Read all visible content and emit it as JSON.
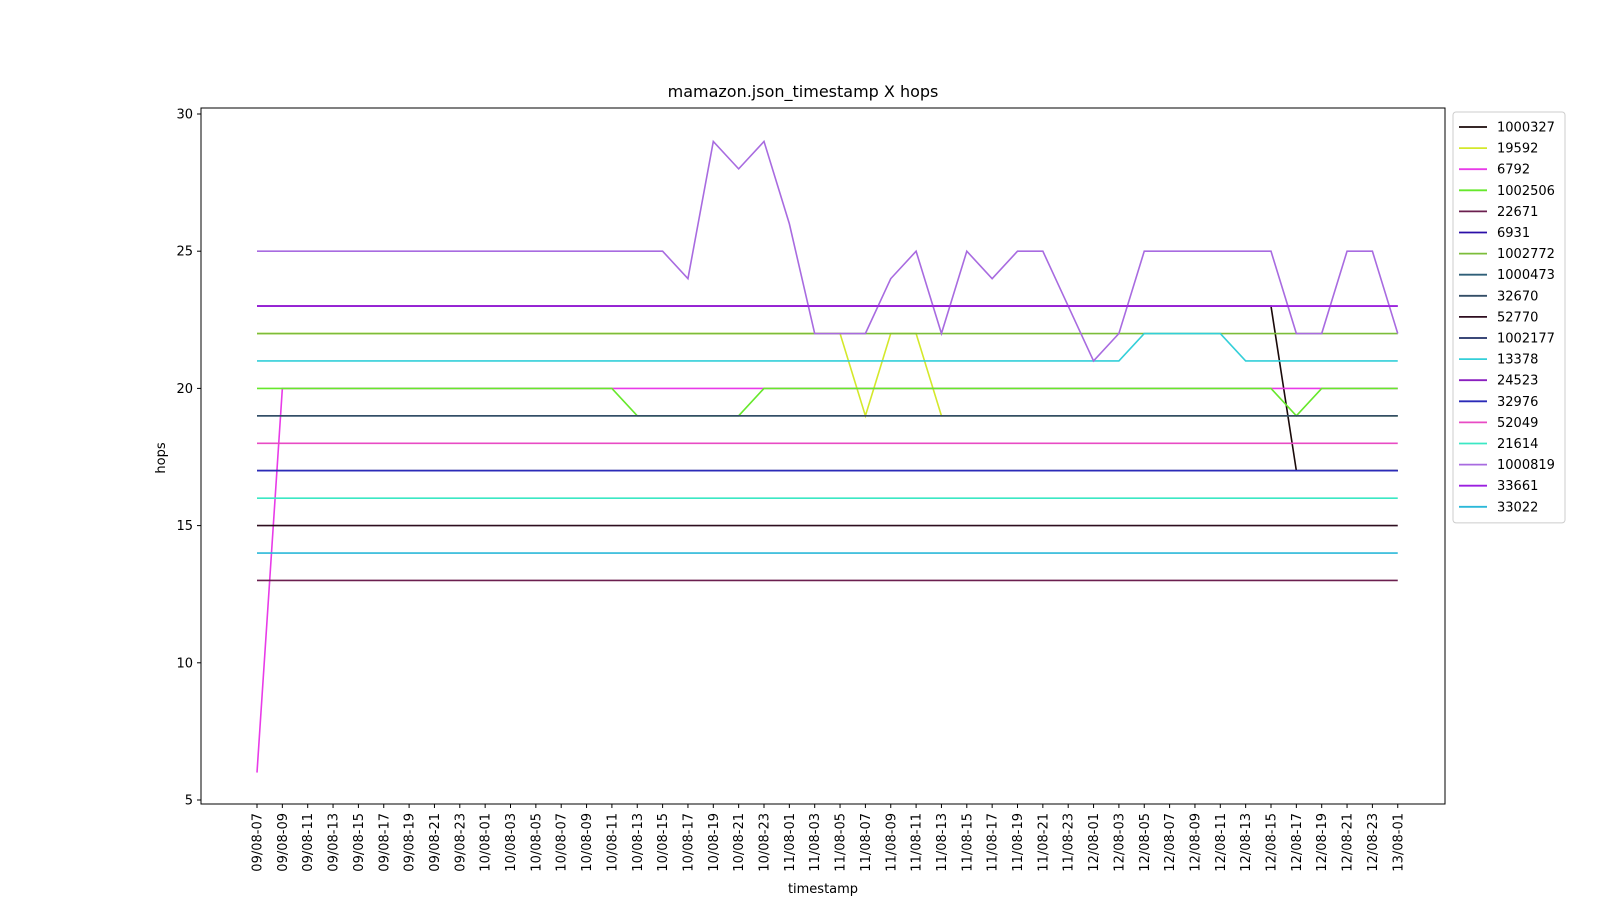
{
  "chart_data": {
    "type": "line",
    "title": "mamazon.json_timestamp X hops",
    "xlabel": "timestamp",
    "ylabel": "hops",
    "ylim": [
      5,
      30
    ],
    "yticks": [
      5,
      10,
      15,
      20,
      25,
      30
    ],
    "grid": false,
    "legend_position": "outside-top-right",
    "categories": [
      "09/08-07",
      "09/08-09",
      "09/08-11",
      "09/08-13",
      "09/08-15",
      "09/08-17",
      "09/08-19",
      "09/08-21",
      "09/08-23",
      "10/08-01",
      "10/08-03",
      "10/08-05",
      "10/08-07",
      "10/08-09",
      "10/08-11",
      "10/08-13",
      "10/08-15",
      "10/08-17",
      "10/08-19",
      "10/08-21",
      "10/08-23",
      "11/08-01",
      "11/08-03",
      "11/08-05",
      "11/08-07",
      "11/08-09",
      "11/08-11",
      "11/08-13",
      "11/08-15",
      "11/08-17",
      "11/08-19",
      "11/08-21",
      "11/08-23",
      "12/08-01",
      "12/08-03",
      "12/08-05",
      "12/08-07",
      "12/08-09",
      "12/08-11",
      "12/08-13",
      "12/08-15",
      "12/08-17",
      "12/08-19",
      "12/08-21",
      "12/08-23",
      "13/08-01"
    ],
    "series": [
      {
        "name": "1000327",
        "color": "#1a0a0a",
        "values": [
          23,
          23,
          23,
          23,
          23,
          23,
          23,
          23,
          23,
          23,
          23,
          23,
          23,
          23,
          23,
          23,
          23,
          23,
          23,
          23,
          23,
          23,
          23,
          23,
          23,
          23,
          23,
          23,
          23,
          23,
          23,
          23,
          23,
          23,
          23,
          23,
          23,
          23,
          23,
          23,
          23,
          17,
          17,
          17,
          17,
          17
        ]
      },
      {
        "name": "19592",
        "color": "#d4e82b",
        "values": [
          22,
          22,
          22,
          22,
          22,
          22,
          22,
          22,
          22,
          22,
          22,
          22,
          22,
          22,
          22,
          22,
          22,
          22,
          22,
          22,
          22,
          22,
          22,
          22,
          19,
          22,
          22,
          19,
          19,
          19,
          19,
          19,
          19,
          19,
          19,
          19,
          19,
          19,
          19,
          19,
          19,
          19,
          19,
          19,
          19,
          19
        ]
      },
      {
        "name": "6792",
        "color": "#e83be8",
        "values": [
          6,
          20,
          20,
          20,
          20,
          20,
          20,
          20,
          20,
          20,
          20,
          20,
          20,
          20,
          20,
          20,
          20,
          20,
          20,
          20,
          20,
          20,
          20,
          20,
          20,
          20,
          20,
          20,
          20,
          20,
          20,
          20,
          20,
          20,
          20,
          20,
          20,
          20,
          20,
          20,
          20,
          20,
          20,
          20,
          20,
          20
        ]
      },
      {
        "name": "1002506",
        "color": "#66e82b",
        "values": [
          20,
          20,
          20,
          20,
          20,
          20,
          20,
          20,
          20,
          20,
          20,
          20,
          20,
          20,
          20,
          19,
          19,
          19,
          19,
          19,
          20,
          20,
          20,
          20,
          20,
          20,
          20,
          20,
          20,
          20,
          20,
          20,
          20,
          20,
          20,
          20,
          20,
          20,
          20,
          20,
          20,
          19,
          20,
          20,
          20,
          20
        ]
      },
      {
        "name": "22671",
        "color": "#6b1f4f",
        "values": [
          13,
          13,
          13,
          13,
          13,
          13,
          13,
          13,
          13,
          13,
          13,
          13,
          13,
          13,
          13,
          13,
          13,
          13,
          13,
          13,
          13,
          13,
          13,
          13,
          13,
          13,
          13,
          13,
          13,
          13,
          13,
          13,
          13,
          13,
          13,
          13,
          13,
          13,
          13,
          13,
          13,
          13,
          13,
          13,
          13,
          13
        ]
      },
      {
        "name": "6931",
        "color": "#2b0fa8",
        "values": [
          17,
          17,
          17,
          17,
          17,
          17,
          17,
          17,
          17,
          17,
          17,
          17,
          17,
          17,
          17,
          17,
          17,
          17,
          17,
          17,
          17,
          17,
          17,
          17,
          17,
          17,
          17,
          17,
          17,
          17,
          17,
          17,
          17,
          17,
          17,
          17,
          17,
          17,
          17,
          17,
          17,
          17,
          17,
          17,
          17,
          17
        ]
      },
      {
        "name": "1002772",
        "color": "#7cbd3a",
        "values": [
          22,
          22,
          22,
          22,
          22,
          22,
          22,
          22,
          22,
          22,
          22,
          22,
          22,
          22,
          22,
          22,
          22,
          22,
          22,
          22,
          22,
          22,
          22,
          22,
          22,
          22,
          22,
          22,
          22,
          22,
          22,
          22,
          22,
          22,
          22,
          22,
          22,
          22,
          22,
          22,
          22,
          22,
          22,
          22,
          22,
          22
        ]
      },
      {
        "name": "1000473",
        "color": "#2f5f78",
        "values": [
          19,
          19,
          19,
          19,
          19,
          19,
          19,
          19,
          19,
          19,
          19,
          19,
          19,
          19,
          19,
          19,
          19,
          19,
          19,
          19,
          19,
          19,
          19,
          19,
          19,
          19,
          19,
          19,
          19,
          19,
          19,
          19,
          19,
          19,
          19,
          19,
          19,
          19,
          19,
          19,
          19,
          19,
          19,
          19,
          19,
          19
        ]
      },
      {
        "name": "32670",
        "color": "#334d66",
        "values": [
          19,
          19,
          19,
          19,
          19,
          19,
          19,
          19,
          19,
          19,
          19,
          19,
          19,
          19,
          19,
          19,
          19,
          19,
          19,
          19,
          19,
          19,
          19,
          19,
          19,
          19,
          19,
          19,
          19,
          19,
          19,
          19,
          19,
          19,
          19,
          19,
          19,
          19,
          19,
          19,
          19,
          19,
          19,
          19,
          19,
          19
        ]
      },
      {
        "name": "52770",
        "color": "#2e0d1f",
        "values": [
          15,
          15,
          15,
          15,
          15,
          15,
          15,
          15,
          15,
          15,
          15,
          15,
          15,
          15,
          15,
          15,
          15,
          15,
          15,
          15,
          15,
          15,
          15,
          15,
          15,
          15,
          15,
          15,
          15,
          15,
          15,
          15,
          15,
          15,
          15,
          15,
          15,
          15,
          15,
          15,
          15,
          15,
          15,
          15,
          15,
          15
        ]
      },
      {
        "name": "1002177",
        "color": "#1f2f66",
        "values": [
          17,
          17,
          17,
          17,
          17,
          17,
          17,
          17,
          17,
          17,
          17,
          17,
          17,
          17,
          17,
          17,
          17,
          17,
          17,
          17,
          17,
          17,
          17,
          17,
          17,
          17,
          17,
          17,
          17,
          17,
          17,
          17,
          17,
          17,
          17,
          17,
          17,
          17,
          17,
          17,
          17,
          17,
          17,
          17,
          17,
          17
        ]
      },
      {
        "name": "13378",
        "color": "#33cfd9",
        "values": [
          21,
          21,
          21,
          21,
          21,
          21,
          21,
          21,
          21,
          21,
          21,
          21,
          21,
          21,
          21,
          21,
          21,
          21,
          21,
          21,
          21,
          21,
          21,
          21,
          21,
          21,
          21,
          21,
          21,
          21,
          21,
          21,
          21,
          21,
          21,
          22,
          22,
          22,
          22,
          21,
          21,
          21,
          21,
          21,
          21,
          21
        ]
      },
      {
        "name": "24523",
        "color": "#8a1fbf",
        "values": [
          23,
          23,
          23,
          23,
          23,
          23,
          23,
          23,
          23,
          23,
          23,
          23,
          23,
          23,
          23,
          23,
          23,
          23,
          23,
          23,
          23,
          23,
          23,
          23,
          23,
          23,
          23,
          23,
          23,
          23,
          23,
          23,
          23,
          23,
          23,
          23,
          23,
          23,
          23,
          23,
          23,
          23,
          23,
          23,
          23,
          23
        ]
      },
      {
        "name": "32976",
        "color": "#2b2bb8",
        "values": [
          17,
          17,
          17,
          17,
          17,
          17,
          17,
          17,
          17,
          17,
          17,
          17,
          17,
          17,
          17,
          17,
          17,
          17,
          17,
          17,
          17,
          17,
          17,
          17,
          17,
          17,
          17,
          17,
          17,
          17,
          17,
          17,
          17,
          17,
          17,
          17,
          17,
          17,
          17,
          17,
          17,
          17,
          17,
          17,
          17,
          17
        ]
      },
      {
        "name": "52049",
        "color": "#e84bc4",
        "values": [
          18,
          18,
          18,
          18,
          18,
          18,
          18,
          18,
          18,
          18,
          18,
          18,
          18,
          18,
          18,
          18,
          18,
          18,
          18,
          18,
          18,
          18,
          18,
          18,
          18,
          18,
          18,
          18,
          18,
          18,
          18,
          18,
          18,
          18,
          18,
          18,
          18,
          18,
          18,
          18,
          18,
          18,
          18,
          18,
          18,
          18
        ]
      },
      {
        "name": "21614",
        "color": "#3be8c4",
        "values": [
          16,
          16,
          16,
          16,
          16,
          16,
          16,
          16,
          16,
          16,
          16,
          16,
          16,
          16,
          16,
          16,
          16,
          16,
          16,
          16,
          16,
          16,
          16,
          16,
          16,
          16,
          16,
          16,
          16,
          16,
          16,
          16,
          16,
          16,
          16,
          16,
          16,
          16,
          16,
          16,
          16,
          16,
          16,
          16,
          16,
          16
        ]
      },
      {
        "name": "1000819",
        "color": "#a86be0",
        "values": [
          25,
          25,
          25,
          25,
          25,
          25,
          25,
          25,
          25,
          25,
          25,
          25,
          25,
          25,
          25,
          25,
          25,
          24,
          29,
          28,
          29,
          26,
          22,
          22,
          22,
          24,
          25,
          22,
          25,
          24,
          25,
          25,
          23,
          21,
          22,
          25,
          25,
          25,
          25,
          25,
          25,
          22,
          22,
          25,
          25,
          22
        ]
      },
      {
        "name": "33661",
        "color": "#9b1fe0",
        "values": [
          23,
          23,
          23,
          23,
          23,
          23,
          23,
          23,
          23,
          23,
          23,
          23,
          23,
          23,
          23,
          23,
          23,
          23,
          23,
          23,
          23,
          23,
          23,
          23,
          23,
          23,
          23,
          23,
          23,
          23,
          23,
          23,
          23,
          23,
          23,
          23,
          23,
          23,
          23,
          23,
          23,
          23,
          23,
          23,
          23,
          23
        ]
      },
      {
        "name": "33022",
        "color": "#2bb8d9",
        "values": [
          14,
          14,
          14,
          14,
          14,
          14,
          14,
          14,
          14,
          14,
          14,
          14,
          14,
          14,
          14,
          14,
          14,
          14,
          14,
          14,
          14,
          14,
          14,
          14,
          14,
          14,
          14,
          14,
          14,
          14,
          14,
          14,
          14,
          14,
          14,
          14,
          14,
          14,
          14,
          14,
          14,
          14,
          14,
          14,
          14,
          14
        ]
      }
    ]
  }
}
